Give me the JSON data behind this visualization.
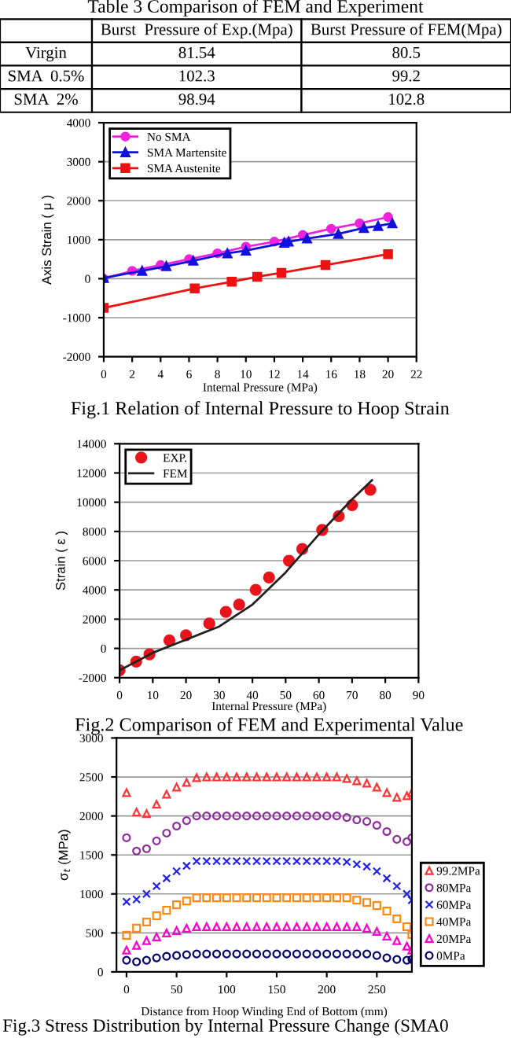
{
  "chart_data": [
    {
      "type": "other",
      "title": "Table 3 Comparison of FEM and Experiment",
      "annotations": [
        "Burst  Pressure of Exp.(Mpa)",
        "Burst Pressure of FEM(Mpa)",
        "Virgin",
        "81.54",
        "80.5",
        "SMA  0.5%",
        "102.3",
        "99.2",
        "SMA  2%",
        "98.94",
        "102.8"
      ]
    },
    {
      "type": "line",
      "title": "Fig.1 Relation of Internal Pressure to Hoop Strain",
      "xlabel": "Internal Pressure (MPa)",
      "ylabel": "Axis Strain ( μ )",
      "xlim": [
        0,
        22
      ],
      "xticks": [
        0,
        2,
        4,
        6,
        8,
        10,
        12,
        14,
        16,
        18,
        20,
        22
      ],
      "ylim": [
        -2000,
        4000
      ],
      "yticks": [
        -2000,
        -1000,
        0,
        1000,
        2000,
        3000,
        4000
      ],
      "grid": "y",
      "legend": "top left",
      "series": [
        {
          "name": "No SMA",
          "color": "#ee22dd",
          "marker": "circle",
          "x": [
            0,
            2,
            4,
            6,
            8,
            10,
            12,
            14,
            16,
            18,
            20
          ],
          "values": [
            0,
            200,
            350,
            500,
            650,
            820,
            950,
            1120,
            1280,
            1420,
            1580
          ]
        },
        {
          "name": "SMA Martensite",
          "color": "#1111dd",
          "marker": "triangle",
          "x": [
            0,
            2.7,
            4.4,
            6.3,
            8.7,
            10,
            12.7,
            13,
            14.3,
            16.5,
            18.3,
            19.3,
            20.3
          ],
          "values": [
            20,
            200,
            320,
            460,
            650,
            720,
            920,
            950,
            1030,
            1150,
            1300,
            1350,
            1420
          ]
        },
        {
          "name": "SMA Austenite",
          "color": "#ee1111",
          "marker": "square",
          "x": [
            0,
            6.4,
            9,
            10.8,
            12.5,
            15.6,
            20
          ],
          "values": [
            -750,
            -250,
            -80,
            50,
            150,
            350,
            630
          ]
        }
      ]
    },
    {
      "type": "scatter",
      "title": "Fig.2 Comparison of FEM and Experimental Value",
      "xlabel": "Internal Pressure (MPa)",
      "ylabel": "Strain ( ε )",
      "xlim": [
        0,
        90
      ],
      "xticks": [
        0,
        10,
        20,
        30,
        40,
        50,
        60,
        70,
        80,
        90
      ],
      "ylim": [
        -2000,
        14000
      ],
      "yticks": [
        -2000,
        0,
        2000,
        4000,
        6000,
        8000,
        10000,
        12000,
        14000
      ],
      "grid": "y",
      "legend": "top left",
      "series": [
        {
          "name": "EXP.",
          "type": "scatter",
          "color": "#e8141b",
          "marker": "circle",
          "x": [
            0,
            5,
            9,
            15,
            20,
            27,
            32,
            36,
            41,
            45,
            51,
            55,
            61,
            66,
            70,
            75.5
          ],
          "values": [
            -1500,
            -900,
            -400,
            550,
            900,
            1700,
            2500,
            3000,
            4000,
            4850,
            6000,
            6800,
            8100,
            9050,
            9800,
            10850
          ]
        },
        {
          "name": "FEM",
          "type": "line",
          "color": "#222222",
          "marker": "none",
          "x": [
            0,
            10,
            20,
            30,
            40,
            50,
            60,
            70,
            76
          ],
          "values": [
            -1500,
            -300,
            600,
            1500,
            3000,
            5200,
            7800,
            10200,
            11500
          ]
        }
      ]
    },
    {
      "type": "scatter",
      "title": "Fig.3 Stress Distribution by Internal Pressure Change (SMA0",
      "xlabel": "Distance from Hoop Winding End of Bottom (mm)",
      "ylabel": "σ$_{t}$ (MPa)",
      "xlim": [
        -10,
        285
      ],
      "xticks": [
        0,
        50,
        100,
        150,
        200,
        250
      ],
      "ylim": [
        0,
        3000
      ],
      "yticks": [
        0,
        500,
        1000,
        1500,
        2000,
        2500,
        3000
      ],
      "grid": "y",
      "legend": "right",
      "x": [
        0,
        10,
        20,
        30,
        40,
        50,
        60,
        70,
        80,
        90,
        100,
        110,
        120,
        130,
        140,
        150,
        160,
        170,
        180,
        190,
        200,
        210,
        220,
        230,
        240,
        250,
        260,
        270,
        280,
        285
      ],
      "series": [
        {
          "name": "99.2MPa",
          "color": "#ff3333",
          "marker": "triangle",
          "values": [
            2300,
            2050,
            2030,
            2150,
            2280,
            2370,
            2430,
            2490,
            2500,
            2500,
            2500,
            2500,
            2500,
            2500,
            2500,
            2500,
            2500,
            2500,
            2500,
            2500,
            2500,
            2500,
            2480,
            2450,
            2420,
            2370,
            2300,
            2240,
            2260,
            2300
          ]
        },
        {
          "name": "80MPa",
          "color": "#8e2c9e",
          "marker": "circle",
          "values": [
            1720,
            1550,
            1580,
            1680,
            1780,
            1870,
            1940,
            2000,
            2000,
            2000,
            2000,
            2000,
            2000,
            2000,
            2000,
            2000,
            2000,
            2000,
            2000,
            2000,
            2000,
            2000,
            1980,
            1950,
            1930,
            1880,
            1800,
            1700,
            1670,
            1720
          ]
        },
        {
          "name": "60MPa",
          "color": "#2222ee",
          "marker": "cross",
          "values": [
            900,
            930,
            1000,
            1100,
            1200,
            1290,
            1360,
            1420,
            1420,
            1420,
            1420,
            1420,
            1420,
            1420,
            1420,
            1420,
            1420,
            1420,
            1420,
            1420,
            1420,
            1420,
            1410,
            1380,
            1350,
            1290,
            1200,
            1100,
            1000,
            920
          ]
        },
        {
          "name": "40MPa",
          "color": "#ff8811",
          "marker": "square",
          "values": [
            470,
            560,
            640,
            720,
            790,
            860,
            910,
            950,
            950,
            950,
            950,
            950,
            950,
            950,
            950,
            950,
            950,
            950,
            950,
            950,
            950,
            950,
            950,
            920,
            890,
            850,
            780,
            680,
            580,
            480
          ]
        },
        {
          "name": "20MPa",
          "color": "#ff00cc",
          "marker": "triangle",
          "values": [
            280,
            340,
            400,
            450,
            500,
            530,
            560,
            580,
            580,
            580,
            580,
            580,
            580,
            580,
            580,
            580,
            580,
            580,
            580,
            580,
            580,
            580,
            580,
            580,
            560,
            520,
            460,
            400,
            330,
            280
          ]
        },
        {
          "name": "0MPa",
          "color": "#000066",
          "marker": "circle",
          "values": [
            150,
            130,
            150,
            180,
            200,
            210,
            220,
            230,
            230,
            230,
            230,
            230,
            230,
            230,
            230,
            230,
            230,
            230,
            230,
            230,
            230,
            230,
            230,
            230,
            230,
            210,
            180,
            160,
            150,
            160
          ]
        }
      ]
    }
  ]
}
